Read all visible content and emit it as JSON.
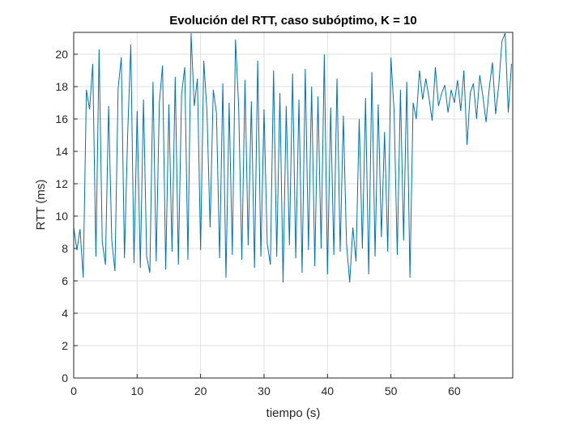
{
  "chart_data": {
    "type": "line",
    "title": "Evolución del RTT, caso subóptimo, K = 10",
    "x_label": "tiempo (s)",
    "y_label": "RTT (ms)",
    "x": [
      0,
      0.5,
      1,
      1.5,
      2,
      2.5,
      3,
      3.5,
      4,
      4.5,
      5,
      5.5,
      6,
      6.5,
      7,
      7.5,
      8,
      8.5,
      9,
      9.5,
      10,
      10.5,
      11,
      11.5,
      12,
      12.5,
      13,
      13.5,
      14,
      14.5,
      15,
      15.5,
      16,
      16.5,
      17,
      17.5,
      18,
      18.5,
      19,
      19.5,
      20,
      20.5,
      21,
      21.5,
      22,
      22.5,
      23,
      23.5,
      24,
      24.5,
      25,
      25.5,
      26,
      26.5,
      27,
      27.5,
      28,
      28.5,
      29,
      29.5,
      30,
      30.5,
      31,
      31.5,
      32,
      32.5,
      33,
      33.5,
      34,
      34.5,
      35,
      35.5,
      36,
      36.5,
      37,
      37.5,
      38,
      38.5,
      39,
      39.5,
      40,
      40.5,
      41,
      41.5,
      42,
      42.5,
      43,
      43.5,
      44,
      44.5,
      45,
      45.5,
      46,
      46.5,
      47,
      47.5,
      48,
      48.5,
      49,
      49.5,
      50,
      50.5,
      51,
      51.5,
      52,
      52.5,
      53,
      53.5,
      54,
      54.5,
      55,
      55.5,
      56,
      56.5,
      57,
      57.5,
      58,
      58.5,
      59,
      59.5,
      60,
      60.5,
      61,
      61.5,
      62,
      62.5,
      63,
      63.5,
      64,
      64.5,
      65,
      65.5,
      66,
      66.5,
      67,
      67.5,
      68,
      68.5,
      69
    ],
    "series": [
      {
        "name": "RTT",
        "color": "#0072bd",
        "values": [
          9.3,
          7.9,
          9.2,
          6.2,
          17.8,
          16.6,
          19.4,
          7.5,
          20.3,
          8.4,
          7.0,
          16.8,
          8.5,
          6.6,
          17.9,
          19.8,
          7.4,
          15.0,
          20.6,
          7.1,
          16.5,
          6.8,
          17.2,
          7.5,
          6.5,
          18.3,
          7.2,
          17.0,
          19.3,
          6.7,
          16.9,
          7.8,
          18.6,
          7.0,
          17.5,
          19.2,
          7.3,
          21.3,
          16.8,
          18.5,
          7.9,
          19.6,
          16.5,
          9.3,
          17.8,
          16.4,
          7.4,
          18.2,
          6.2,
          17.0,
          7.6,
          20.9,
          16.8,
          7.3,
          18.4,
          8.2,
          17.1,
          6.8,
          19.6,
          7.5,
          16.6,
          8.3,
          7.0,
          19.0,
          7.5,
          17.6,
          5.9,
          16.8,
          8.2,
          18.8,
          7.4,
          17.2,
          6.5,
          19.1,
          7.9,
          18.0,
          6.9,
          17.4,
          8.0,
          20.0,
          6.4,
          16.7,
          7.6,
          18.5,
          7.8,
          16.2,
          8.3,
          5.9,
          9.3,
          7.2,
          16.0,
          8.0,
          17.3,
          6.4,
          18.9,
          7.5,
          16.9,
          8.7,
          15.2,
          7.8,
          19.8,
          16.5,
          7.6,
          17.8,
          8.5,
          18.3,
          6.2,
          17.0,
          16.0,
          19.0,
          17.2,
          18.5,
          17.3,
          15.9,
          19.2,
          16.8,
          17.6,
          18.1,
          16.4,
          17.8,
          17.0,
          18.4,
          16.5,
          19.0,
          14.4,
          17.6,
          18.2,
          16.0,
          18.7,
          17.4,
          15.8,
          17.9,
          19.5,
          16.3,
          18.1,
          20.8,
          21.3,
          16.4,
          19.4
        ]
      }
    ],
    "xlim": [
      0,
      69.2
    ],
    "ylim": [
      0,
      21.35
    ],
    "xticks": [
      0,
      10,
      20,
      30,
      40,
      50,
      60
    ],
    "yticks": [
      0,
      2,
      4,
      6,
      8,
      10,
      12,
      14,
      16,
      18,
      20
    ],
    "grid": true
  }
}
